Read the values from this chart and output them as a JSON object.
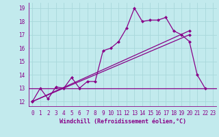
{
  "xlabel": "Windchill (Refroidissement éolien,°C)",
  "bg_color": "#c2eaed",
  "grid_color": "#a8d8db",
  "line_color": "#880088",
  "xlim": [
    -0.5,
    23.5
  ],
  "ylim": [
    11.6,
    19.4
  ],
  "yticks": [
    12,
    13,
    14,
    15,
    16,
    17,
    18,
    19
  ],
  "xticks": [
    0,
    1,
    2,
    3,
    4,
    5,
    6,
    7,
    8,
    9,
    10,
    11,
    12,
    13,
    14,
    15,
    16,
    17,
    18,
    19,
    20,
    21,
    22,
    23
  ],
  "curve1_x": [
    0,
    1,
    2,
    3,
    4,
    5,
    6,
    7,
    8,
    9,
    10,
    11,
    12,
    13,
    14,
    15,
    16,
    17,
    18,
    19,
    20,
    21,
    22
  ],
  "curve1_y": [
    12.0,
    13.0,
    12.2,
    13.1,
    13.0,
    13.8,
    13.0,
    13.5,
    13.5,
    15.8,
    16.0,
    16.5,
    17.5,
    19.0,
    18.0,
    18.1,
    18.1,
    18.3,
    17.3,
    17.0,
    16.5,
    14.0,
    13.0
  ],
  "hline_y": 13.0,
  "line2_x": [
    0,
    20
  ],
  "line2_y": [
    12.0,
    17.3
  ],
  "line3_x": [
    0,
    20
  ],
  "line3_y": [
    12.0,
    17.0
  ],
  "marker_size": 2.5,
  "font_color": "#880088",
  "font_size": 5.5,
  "xlabel_size": 6.0
}
